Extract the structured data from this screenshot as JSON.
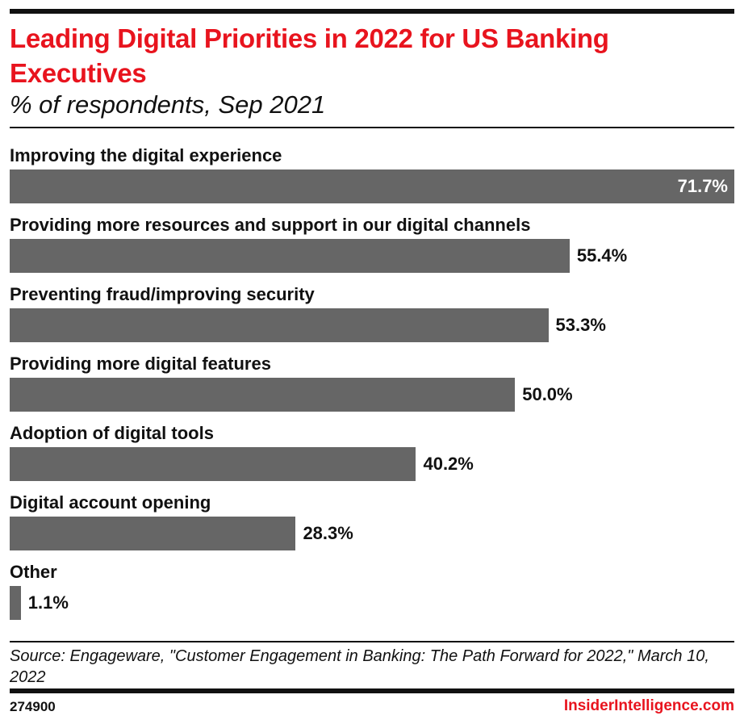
{
  "chart_data": {
    "type": "bar",
    "orientation": "horizontal",
    "title": "Leading Digital Priorities in 2022 for US Banking Executives",
    "subtitle": "% of respondents, Sep 2021",
    "categories": [
      "Improving the digital experience",
      "Providing more resources and support in our digital channels",
      "Preventing fraud/improving security",
      "Providing more digital features",
      "Adoption of digital tools",
      "Digital account opening",
      "Other"
    ],
    "values": [
      71.7,
      55.4,
      53.3,
      50.0,
      40.2,
      28.3,
      1.1
    ],
    "labels": [
      "71.7%",
      "55.4%",
      "53.3%",
      "50.0%",
      "40.2%",
      "28.3%",
      "1.1%"
    ],
    "xlim": [
      0,
      71.7
    ],
    "grid": false,
    "bar_color": "#666666"
  },
  "source": "Source: Engageware, \"Customer Engagement in Banking: The Path Forward for 2022,\" March 10, 2022",
  "footer": {
    "chart_id": "274900",
    "brand": "InsiderIntelligence.com"
  },
  "colors": {
    "accent": "#e8141e",
    "bar": "#666666",
    "text": "#111111"
  }
}
